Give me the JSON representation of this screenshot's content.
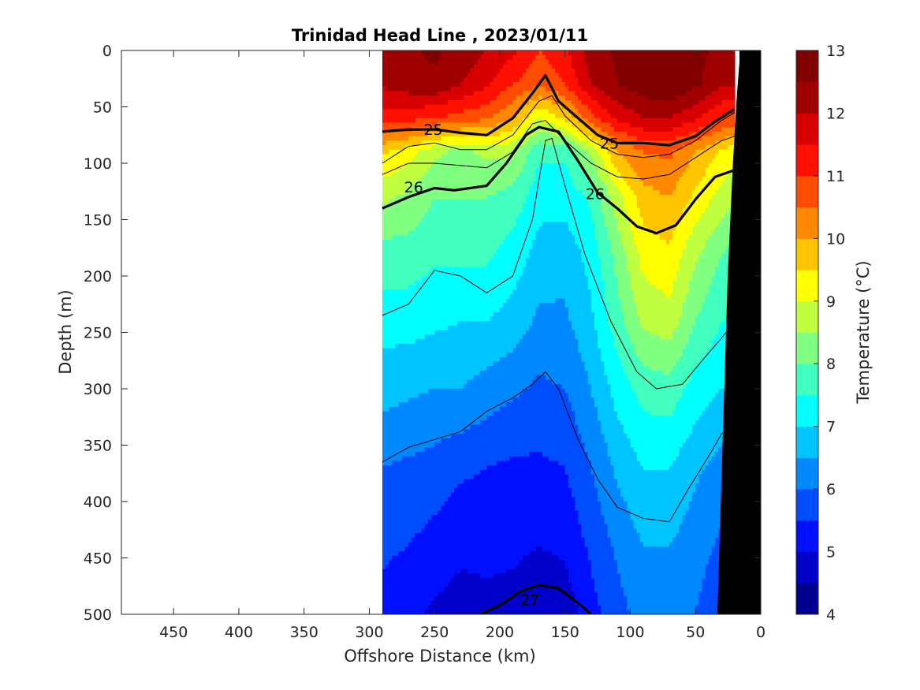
{
  "chart_data": {
    "type": "contour",
    "title": "Trinidad Head Line , 2023/01/11",
    "xlabel": "Offshore Distance (km)",
    "ylabel": "Depth (m)",
    "colorbar_label": "Temperature (°C)",
    "xlim": [
      490,
      0
    ],
    "ylim": [
      0,
      500
    ],
    "x_reversed": true,
    "y_reversed": true,
    "x_ticks": [
      450,
      400,
      350,
      300,
      250,
      200,
      150,
      100,
      50,
      0
    ],
    "y_ticks": [
      0,
      50,
      100,
      150,
      200,
      250,
      300,
      350,
      400,
      450,
      500
    ],
    "colorbar": {
      "min": 4,
      "max": 13,
      "step": 0.5,
      "ticks": [
        4,
        5,
        6,
        7,
        8,
        9,
        10,
        11,
        12,
        13
      ],
      "colors": [
        "#00008f",
        "#0000c8",
        "#0010ff",
        "#004cff",
        "#0088ff",
        "#00c4ff",
        "#00ffff",
        "#40ffbf",
        "#80ff80",
        "#bfff40",
        "#ffff00",
        "#ffc400",
        "#ff8800",
        "#ff4c00",
        "#ff1000",
        "#d80000",
        "#a00000",
        "#800000"
      ]
    },
    "data_extent_x": [
      290,
      20
    ],
    "stations_x": [
      290,
      270,
      250,
      230,
      210,
      190,
      170,
      150,
      130,
      110,
      90,
      70,
      50,
      30,
      20
    ],
    "temperature_fields": [
      {
        "depth": 0,
        "values": [
          12.2,
          12.4,
          12.6,
          12.3,
          12.0,
          11.6,
          11.0,
          11.4,
          12.3,
          12.6,
          12.9,
          13.1,
          12.7,
          12.3,
          12.2
        ]
      },
      {
        "depth": 30,
        "values": [
          12.1,
          12.3,
          12.4,
          12.0,
          11.6,
          11.0,
          10.6,
          11.0,
          12.0,
          12.5,
          12.8,
          13.0,
          12.6,
          12.1,
          12.0
        ]
      },
      {
        "depth": 60,
        "values": [
          11.2,
          11.2,
          11.0,
          10.8,
          10.6,
          10.0,
          9.0,
          9.6,
          10.8,
          11.6,
          12.0,
          12.0,
          11.6,
          11.0,
          10.8
        ]
      },
      {
        "depth": 90,
        "values": [
          9.6,
          9.2,
          8.6,
          8.4,
          8.6,
          8.6,
          7.6,
          7.6,
          8.6,
          10.0,
          10.5,
          10.6,
          10.0,
          9.4,
          9.2
        ]
      },
      {
        "depth": 130,
        "values": [
          8.6,
          8.4,
          8.0,
          8.0,
          8.0,
          7.8,
          7.2,
          7.2,
          7.6,
          8.8,
          9.8,
          10.0,
          9.4,
          8.8,
          8.6
        ]
      },
      {
        "depth": 180,
        "values": [
          7.8,
          7.8,
          7.6,
          7.6,
          7.6,
          7.3,
          6.8,
          6.7,
          7.2,
          8.2,
          9.2,
          9.4,
          8.6,
          8.0,
          7.8
        ]
      },
      {
        "depth": 240,
        "values": [
          7.2,
          7.2,
          7.1,
          7.0,
          7.0,
          6.8,
          6.4,
          6.4,
          6.9,
          7.8,
          8.6,
          8.8,
          8.0,
          7.5,
          7.4
        ]
      },
      {
        "depth": 300,
        "values": [
          6.7,
          6.6,
          6.5,
          6.5,
          6.3,
          6.1,
          5.9,
          6.0,
          6.5,
          7.2,
          7.7,
          7.8,
          7.3,
          7.0,
          6.9
        ]
      },
      {
        "depth": 370,
        "values": [
          6.0,
          5.9,
          5.8,
          5.6,
          5.5,
          5.4,
          5.4,
          5.5,
          6.0,
          6.6,
          7.0,
          7.0,
          6.6,
          6.3,
          6.2
        ]
      },
      {
        "depth": 440,
        "values": [
          5.6,
          5.5,
          5.3,
          5.1,
          5.1,
          5.1,
          5.0,
          5.1,
          5.6,
          6.1,
          6.5,
          6.5,
          6.2,
          5.9,
          5.8
        ]
      },
      {
        "depth": 500,
        "values": [
          5.3,
          5.1,
          4.9,
          4.8,
          4.9,
          4.8,
          4.5,
          4.7,
          5.3,
          5.8,
          6.2,
          6.3,
          6.0,
          5.6,
          5.5
        ]
      }
    ],
    "density_contours": [
      {
        "label": "25",
        "points": [
          [
            290,
            72
          ],
          [
            270,
            70
          ],
          [
            250,
            70
          ],
          [
            230,
            73
          ],
          [
            210,
            75
          ],
          [
            190,
            60
          ],
          [
            175,
            38
          ],
          [
            165,
            22
          ],
          [
            155,
            45
          ],
          [
            140,
            60
          ],
          [
            125,
            75
          ],
          [
            110,
            82
          ],
          [
            90,
            82
          ],
          [
            70,
            84
          ],
          [
            50,
            76
          ],
          [
            35,
            63
          ],
          [
            20,
            52
          ]
        ]
      },
      {
        "label": "26",
        "points": [
          [
            290,
            140
          ],
          [
            270,
            130
          ],
          [
            250,
            122
          ],
          [
            235,
            124
          ],
          [
            210,
            120
          ],
          [
            195,
            100
          ],
          [
            180,
            75
          ],
          [
            170,
            68
          ],
          [
            155,
            72
          ],
          [
            140,
            98
          ],
          [
            125,
            126
          ],
          [
            110,
            140
          ],
          [
            95,
            156
          ],
          [
            80,
            162
          ],
          [
            65,
            155
          ],
          [
            50,
            132
          ],
          [
            35,
            112
          ],
          [
            20,
            106
          ]
        ]
      },
      {
        "label": "27",
        "points": [
          [
            215,
            500
          ],
          [
            200,
            492
          ],
          [
            185,
            480
          ],
          [
            170,
            474
          ],
          [
            155,
            477
          ],
          [
            140,
            490
          ],
          [
            130,
            500
          ]
        ]
      }
    ],
    "density_contour_labels": [
      {
        "label": "25",
        "x": 251,
        "y": 70
      },
      {
        "label": "25",
        "x": 116,
        "y": 82
      },
      {
        "label": "26",
        "x": 266,
        "y": 121
      },
      {
        "label": "26",
        "x": 127,
        "y": 127
      },
      {
        "label": "27",
        "x": 177,
        "y": 487
      }
    ],
    "thin_contours": [
      [
        [
          290,
          100
        ],
        [
          270,
          85
        ],
        [
          250,
          82
        ],
        [
          230,
          88
        ],
        [
          210,
          88
        ],
        [
          190,
          75
        ],
        [
          170,
          45
        ],
        [
          160,
          40
        ],
        [
          150,
          58
        ],
        [
          130,
          80
        ],
        [
          110,
          92
        ],
        [
          90,
          95
        ],
        [
          70,
          92
        ],
        [
          50,
          80
        ],
        [
          30,
          62
        ],
        [
          20,
          55
        ]
      ],
      [
        [
          290,
          110
        ],
        [
          270,
          100
        ],
        [
          250,
          100
        ],
        [
          230,
          102
        ],
        [
          210,
          104
        ],
        [
          190,
          90
        ],
        [
          175,
          65
        ],
        [
          165,
          62
        ],
        [
          150,
          80
        ],
        [
          130,
          100
        ],
        [
          110,
          112
        ],
        [
          90,
          114
        ],
        [
          70,
          110
        ],
        [
          50,
          95
        ],
        [
          30,
          80
        ],
        [
          20,
          76
        ]
      ],
      [
        [
          290,
          235
        ],
        [
          270,
          225
        ],
        [
          250,
          195
        ],
        [
          230,
          200
        ],
        [
          210,
          215
        ],
        [
          190,
          200
        ],
        [
          175,
          150
        ],
        [
          165,
          80
        ],
        [
          160,
          78
        ],
        [
          150,
          120
        ],
        [
          135,
          180
        ],
        [
          115,
          240
        ],
        [
          95,
          285
        ],
        [
          80,
          300
        ],
        [
          60,
          296
        ],
        [
          45,
          275
        ],
        [
          30,
          255
        ],
        [
          20,
          240
        ]
      ],
      [
        [
          290,
          365
        ],
        [
          270,
          352
        ],
        [
          250,
          345
        ],
        [
          230,
          338
        ],
        [
          210,
          320
        ],
        [
          190,
          308
        ],
        [
          175,
          296
        ],
        [
          165,
          285
        ],
        [
          155,
          300
        ],
        [
          140,
          345
        ],
        [
          125,
          380
        ],
        [
          110,
          405
        ],
        [
          90,
          415
        ],
        [
          70,
          418
        ],
        [
          55,
          388
        ],
        [
          40,
          360
        ],
        [
          30,
          340
        ],
        [
          20,
          330
        ]
      ]
    ],
    "bathymetry": [
      [
        33,
        500
      ],
      [
        29,
        350
      ],
      [
        25,
        200
      ],
      [
        21,
        100
      ],
      [
        18,
        40
      ],
      [
        16,
        10
      ],
      [
        16,
        0
      ],
      [
        0,
        0
      ],
      [
        0,
        500
      ]
    ]
  }
}
